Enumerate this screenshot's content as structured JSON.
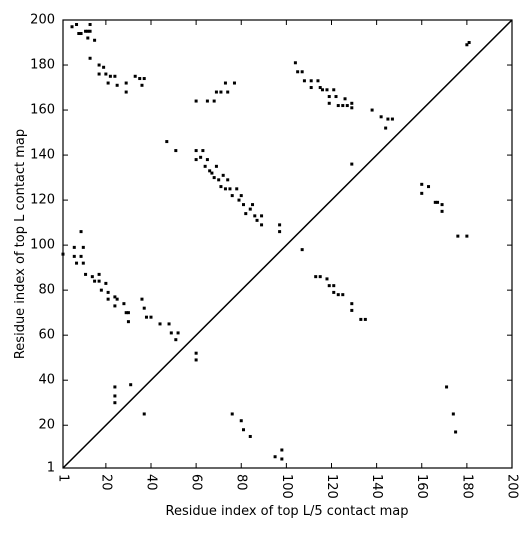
{
  "chart_data": {
    "type": "scatter",
    "xlabel": "Residue index of top L/5 contact map",
    "ylabel": "Residue index of top L contact map",
    "xlim": [
      1,
      200
    ],
    "ylim": [
      1,
      200
    ],
    "xticks": [
      1,
      20,
      40,
      60,
      80,
      100,
      120,
      140,
      160,
      180,
      200
    ],
    "yticks": [
      1,
      20,
      40,
      60,
      80,
      100,
      120,
      140,
      160,
      180,
      200
    ],
    "diagonal": true,
    "series": [
      {
        "color": "#000000",
        "x": [
          5,
          7,
          8,
          9,
          11,
          12,
          12,
          13,
          13,
          15,
          13,
          17,
          17,
          19,
          20,
          21,
          22,
          24,
          25,
          29,
          29,
          33,
          35,
          36,
          37,
          60,
          65,
          68,
          69,
          71,
          73,
          74,
          77,
          104,
          105,
          107,
          108,
          111,
          111,
          114,
          115,
          116,
          118,
          119,
          119,
          121,
          122,
          123,
          125,
          126,
          127,
          129,
          129,
          138,
          142,
          145,
          144,
          147,
          180,
          181,
          47,
          51,
          60,
          60,
          62,
          63,
          64,
          65,
          66,
          67,
          68,
          69,
          70,
          71,
          72,
          73,
          74,
          75,
          76,
          78,
          79,
          80,
          81,
          82,
          84,
          85,
          86,
          87,
          89,
          89,
          97,
          97,
          129,
          1,
          6,
          6,
          7,
          9,
          10,
          10,
          9,
          11,
          14,
          15,
          17,
          17,
          18,
          20,
          21,
          21,
          24,
          24,
          25,
          28,
          29,
          30,
          30,
          36,
          37,
          38,
          40,
          44,
          48,
          49,
          51,
          52,
          60,
          60,
          24,
          24,
          24,
          31,
          37,
          76,
          80,
          81,
          84,
          95,
          98,
          98,
          107,
          113,
          115,
          118,
          119,
          121,
          121,
          123,
          125,
          129,
          129,
          133,
          135,
          160,
          160,
          163,
          166,
          167,
          169,
          169,
          171,
          174,
          175,
          176,
          180
        ],
        "values": [
          197,
          198,
          194,
          194,
          195,
          192,
          195,
          198,
          195,
          191,
          183,
          180,
          176,
          179,
          176,
          172,
          175,
          175,
          171,
          172,
          168,
          175,
          174,
          171,
          174,
          164,
          164,
          164,
          168,
          168,
          172,
          168,
          172,
          181,
          177,
          177,
          173,
          173,
          170,
          173,
          170,
          169,
          169,
          166,
          163,
          169,
          166,
          162,
          162,
          165,
          162,
          163,
          161,
          160,
          157,
          156,
          152,
          156,
          189,
          190,
          146,
          142,
          142,
          138,
          139,
          142,
          135,
          138,
          133,
          132,
          130,
          135,
          129,
          126,
          131,
          125,
          129,
          125,
          122,
          125,
          120,
          122,
          118,
          114,
          116,
          118,
          113,
          111,
          113,
          109,
          106,
          109,
          136,
          96,
          99,
          95,
          92,
          106,
          99,
          92,
          95,
          87,
          86,
          84,
          87,
          84,
          80,
          83,
          79,
          76,
          77,
          73,
          76,
          74,
          70,
          66,
          70,
          76,
          72,
          68,
          68,
          65,
          65,
          61,
          58,
          61,
          52,
          49,
          37,
          33,
          30,
          38,
          25,
          25,
          22,
          18,
          15,
          6,
          5,
          9,
          98,
          86,
          86,
          85,
          82,
          79,
          82,
          78,
          78,
          74,
          71,
          67,
          67,
          127,
          123,
          126,
          119,
          119,
          115,
          118,
          37,
          25,
          17,
          104,
          104
        ]
      }
    ]
  }
}
